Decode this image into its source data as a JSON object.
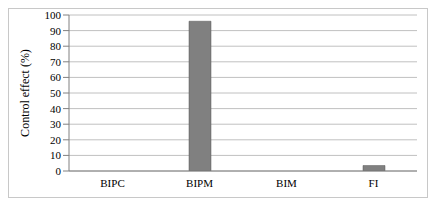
{
  "chart_data": {
    "type": "bar",
    "categories": [
      "BIPC",
      "BIPM",
      "BIM",
      "FI"
    ],
    "values": [
      0,
      96,
      0,
      3.5
    ],
    "color": "#808080",
    "y_label": "Control effect (%)",
    "ylim": [
      0,
      100
    ],
    "yticks": [
      0,
      10,
      20,
      30,
      40,
      50,
      60,
      70,
      80,
      90,
      100
    ],
    "grid": true
  }
}
